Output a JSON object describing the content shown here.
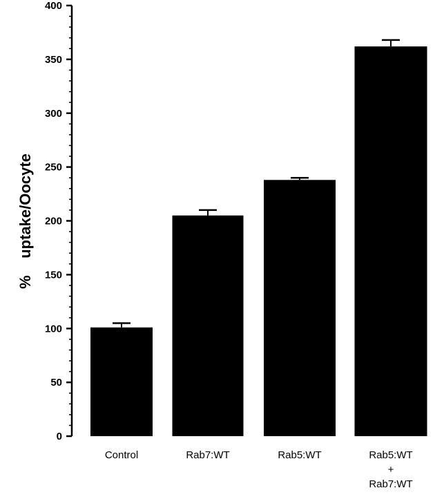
{
  "chart_data": {
    "type": "bar",
    "title": "",
    "xlabel": "",
    "ylabel": "%    uptake/Oocyte",
    "ylim": [
      0,
      400
    ],
    "yticks": [
      "0",
      "50",
      "100",
      "150",
      "200",
      "250",
      "300",
      "350",
      "400"
    ],
    "categories": [
      [
        "Control"
      ],
      [
        "Rab7:WT"
      ],
      [
        "Rab5:WT"
      ],
      [
        "Rab5:WT",
        "+",
        "Rab7:WT"
      ]
    ],
    "values": [
      101,
      205,
      238,
      362
    ],
    "errors": [
      4,
      5,
      2,
      6
    ],
    "bar_color": "#000000",
    "grid": false
  }
}
